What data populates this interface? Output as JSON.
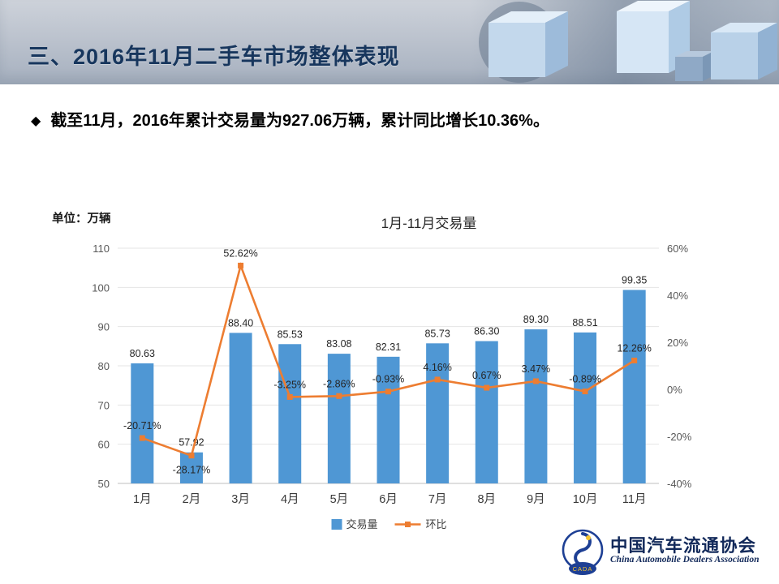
{
  "header": {
    "title": "三、2016年11月二手车市场整体表现"
  },
  "summary": {
    "bullet": "◆",
    "text": "截至11月，2016年累计交易量为927.06万辆，累计同比增长10.36%。"
  },
  "chart_data": {
    "type": "bar+line",
    "title": "1月-11月交易量",
    "unit_label": "单位：万辆",
    "categories": [
      "1月",
      "2月",
      "3月",
      "4月",
      "5月",
      "6月",
      "7月",
      "8月",
      "9月",
      "10月",
      "11月"
    ],
    "series": [
      {
        "name": "交易量",
        "type": "bar",
        "color": "#4F97D4",
        "values": [
          80.63,
          57.92,
          88.4,
          85.53,
          83.08,
          82.31,
          85.73,
          86.3,
          89.3,
          88.51,
          99.35
        ]
      },
      {
        "name": "环比",
        "type": "line",
        "color": "#ED7D31",
        "label_suffix": "%",
        "values": [
          -20.71,
          -28.17,
          52.62,
          -3.25,
          -2.86,
          -0.93,
          4.16,
          0.67,
          3.47,
          -0.89,
          12.26
        ]
      }
    ],
    "left_axis": {
      "min": 50,
      "max": 110,
      "step": 10
    },
    "right_axis": {
      "min": -40,
      "max": 60,
      "step": 20,
      "suffix": "%"
    },
    "legend_position": "bottom",
    "grid": true
  },
  "footer": {
    "logo_text": "CADA",
    "org_cn": "中国汽车流通协会",
    "org_en": "China Automobile Dealers Association"
  }
}
